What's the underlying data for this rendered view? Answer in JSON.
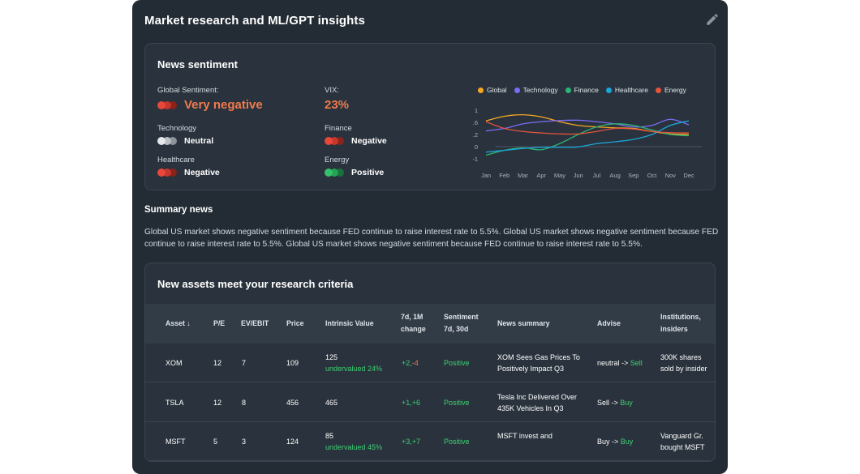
{
  "panel": {
    "title": "Market research and ML/GPT insights",
    "edit_icon": "pencil-icon"
  },
  "sentiment": {
    "title": "News sentiment",
    "global": {
      "label": "Global Sentiment:",
      "value": "Very negative",
      "color": "red"
    },
    "vix": {
      "label": "VIX:",
      "value": "23%"
    },
    "technology": {
      "label": "Technology",
      "value": "Neutral",
      "color": "grey"
    },
    "finance": {
      "label": "Finance",
      "value": "Negative",
      "color": "red"
    },
    "healthcare": {
      "label": "Healthcare",
      "value": "Negative",
      "color": "red"
    },
    "energy": {
      "label": "Energy",
      "value": "Positive",
      "color": "green"
    }
  },
  "chart_data": {
    "type": "line",
    "title": "",
    "xlabel": "",
    "ylabel": "",
    "x": [
      "Jan",
      "Feb",
      "Mar",
      "Apr",
      "May",
      "Jun",
      "Jul",
      "Aug",
      "Sep",
      "Oct",
      "Nov",
      "Dec"
    ],
    "y_ticks": [
      "1",
      "0.6",
      "0.2",
      "0",
      "-1"
    ],
    "legend_position": "top",
    "grid": false,
    "series": [
      {
        "name": "Global",
        "color": "#f5a623",
        "values": [
          0.65,
          0.8,
          0.85,
          0.78,
          0.62,
          0.5,
          0.45,
          0.42,
          0.4,
          0.3,
          0.22,
          0.2
        ]
      },
      {
        "name": "Technology",
        "color": "#7b6cf6",
        "values": [
          0.32,
          0.4,
          0.55,
          0.62,
          0.66,
          0.67,
          0.62,
          0.55,
          0.45,
          0.5,
          0.7,
          0.52
        ]
      },
      {
        "name": "Finance",
        "color": "#2bb673",
        "values": [
          -0.7,
          -0.3,
          -0.1,
          -0.25,
          0.05,
          0.2,
          0.45,
          0.55,
          0.5,
          0.35,
          0.2,
          0.18
        ]
      },
      {
        "name": "Healthcare",
        "color": "#1ba5d8",
        "values": [
          -0.45,
          -0.3,
          -0.15,
          -0.05,
          -0.05,
          -0.02,
          0.05,
          0.08,
          0.12,
          0.2,
          0.5,
          0.65
        ]
      },
      {
        "name": "Energy",
        "color": "#e5533d",
        "values": [
          0.62,
          0.4,
          0.3,
          0.25,
          0.22,
          0.22,
          0.3,
          0.4,
          0.38,
          0.3,
          0.26,
          0.25
        ]
      }
    ]
  },
  "summary": {
    "title": "Summary news",
    "text": "Global US market shows negative sentiment because FED continue to raise interest rate to 5.5%. Global US market shows negative sentiment because FED continue to raise interest rate to 5.5%. Global US market shows negative sentiment because FED continue to raise interest rate to 5.5%."
  },
  "assets": {
    "title": "New assets meet your research criteria",
    "columns": [
      "Asset ↓",
      "P/E",
      "EV/EBIT",
      "Price",
      "Intrinsic Value",
      "7d, 1M change",
      "Sentiment 7d, 30d",
      "News summary",
      "Advise",
      "Institutions, insiders"
    ],
    "rows": [
      {
        "asset": "XOM",
        "pe": "12",
        "ev": "7",
        "price": "109",
        "iv": "125",
        "iv_note": "undervalued 24%",
        "chg_a": "+2",
        "chg_b": "-4",
        "sentiment": "Positive",
        "news": "XOM Sees Gas Prices To Positively Impact Q3",
        "adv_from": "neutral",
        "adv_to": "Sell",
        "inst": "300K shares sold by insider"
      },
      {
        "asset": "TSLA",
        "pe": "12",
        "ev": "8",
        "price": "456",
        "iv": "465",
        "iv_note": "",
        "chg_a": "+1",
        "chg_b": "+6",
        "sentiment": "Positive",
        "news": "Tesla Inc Delivered Over 435K Vehicles In Q3",
        "adv_from": "Sell",
        "adv_to": "Buy",
        "inst": ""
      },
      {
        "asset": "MSFT",
        "pe": "5",
        "ev": "3",
        "price": "124",
        "iv": "85",
        "iv_note": "undervalued 45%",
        "chg_a": "+3",
        "chg_b": "+7",
        "sentiment": "Positive",
        "news": "MSFT invest and",
        "adv_from": "Buy",
        "adv_to": "Buy",
        "inst": "Vanguard Gr. bought MSFT"
      }
    ]
  }
}
